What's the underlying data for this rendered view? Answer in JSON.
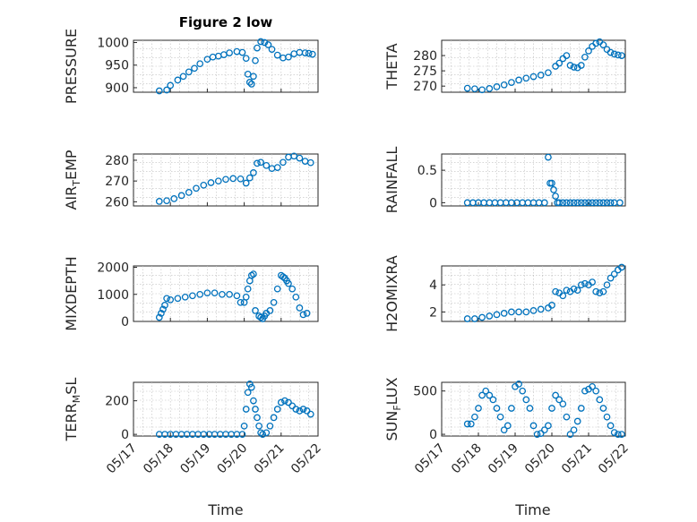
{
  "figure": {
    "title": "Figure 2 low",
    "marker_color": "#0072bd",
    "xlabel": "Time",
    "xticklabels": [
      "05/17",
      "05/18",
      "05/19",
      "05/20",
      "05/21",
      "05/22"
    ]
  },
  "chart_data": [
    {
      "type": "scatter",
      "ylabel": "PRESSURE",
      "ylabel_sub": "",
      "ylabel_tail": "",
      "ylim": [
        890,
        1005
      ],
      "yticks": [
        {
          "v": 900,
          "label": "900"
        },
        {
          "v": 950,
          "label": "950"
        },
        {
          "v": 1000,
          "label": "1000"
        }
      ],
      "x": [
        0.7,
        0.9,
        1.0,
        1.2,
        1.35,
        1.5,
        1.65,
        1.8,
        2.0,
        2.15,
        2.3,
        2.45,
        2.6,
        2.8,
        2.95,
        3.05,
        3.1,
        3.15,
        3.2,
        3.25,
        3.3,
        3.35,
        3.45,
        3.55,
        3.65,
        3.75,
        3.9,
        4.05,
        4.2,
        4.35,
        4.5,
        4.65,
        4.75,
        4.85
      ],
      "y": [
        893,
        895,
        905,
        917,
        925,
        935,
        943,
        953,
        963,
        968,
        970,
        973,
        977,
        980,
        978,
        965,
        930,
        912,
        908,
        925,
        960,
        988,
        1002,
        1000,
        995,
        985,
        972,
        966,
        968,
        975,
        978,
        977,
        976,
        974
      ]
    },
    {
      "type": "scatter",
      "ylabel": "THETA",
      "ylabel_sub": "",
      "ylabel_tail": "",
      "ylim": [
        268,
        285
      ],
      "yticks": [
        {
          "v": 270,
          "label": "270"
        },
        {
          "v": 275,
          "label": "275"
        },
        {
          "v": 280,
          "label": "280"
        }
      ],
      "x": [
        0.7,
        0.9,
        1.1,
        1.3,
        1.5,
        1.7,
        1.9,
        2.1,
        2.3,
        2.5,
        2.7,
        2.9,
        3.1,
        3.2,
        3.3,
        3.4,
        3.5,
        3.6,
        3.7,
        3.8,
        3.9,
        4.0,
        4.1,
        4.2,
        4.3,
        4.4,
        4.5,
        4.6,
        4.7,
        4.8,
        4.9
      ],
      "y": [
        269.3,
        269.1,
        268.8,
        269.2,
        269.8,
        270.4,
        271.2,
        272.0,
        272.6,
        273.1,
        273.6,
        274.4,
        276.5,
        277.5,
        279.0,
        280.0,
        276.8,
        276.2,
        276.0,
        276.8,
        279.5,
        281.5,
        283.0,
        284.0,
        284.5,
        283.5,
        282.0,
        281.0,
        280.5,
        280.2,
        280.0
      ]
    },
    {
      "type": "scatter",
      "ylabel": "AIR",
      "ylabel_sub": "T",
      "ylabel_tail": "EMP",
      "ylim": [
        258,
        283
      ],
      "yticks": [
        {
          "v": 260,
          "label": "260"
        },
        {
          "v": 270,
          "label": "270"
        },
        {
          "v": 280,
          "label": "280"
        }
      ],
      "x": [
        0.7,
        0.9,
        1.1,
        1.3,
        1.5,
        1.7,
        1.9,
        2.1,
        2.3,
        2.5,
        2.7,
        2.9,
        3.05,
        3.15,
        3.25,
        3.35,
        3.45,
        3.6,
        3.75,
        3.9,
        4.05,
        4.2,
        4.35,
        4.5,
        4.65,
        4.8
      ],
      "y": [
        260.2,
        260.5,
        261.5,
        263.0,
        264.5,
        266.5,
        268.0,
        269.2,
        270.0,
        270.8,
        271.2,
        271.0,
        269.0,
        271.5,
        274.0,
        278.5,
        279.0,
        277.5,
        276.0,
        276.5,
        279.0,
        281.5,
        282.0,
        281.0,
        279.5,
        278.8
      ]
    },
    {
      "type": "scatter",
      "ylabel": "RAINFALL",
      "ylabel_sub": "",
      "ylabel_tail": "",
      "ylim": [
        -0.05,
        0.75
      ],
      "yticks": [
        {
          "v": 0,
          "label": "0"
        },
        {
          "v": 0.5,
          "label": "0.5"
        }
      ],
      "x": [
        0.7,
        0.85,
        1.0,
        1.15,
        1.3,
        1.45,
        1.6,
        1.75,
        1.9,
        2.05,
        2.2,
        2.35,
        2.5,
        2.65,
        2.8,
        2.9,
        2.95,
        3.0,
        3.05,
        3.1,
        3.15,
        3.2,
        3.3,
        3.4,
        3.5,
        3.6,
        3.7,
        3.8,
        3.9,
        4.0,
        4.1,
        4.2,
        4.3,
        4.4,
        4.5,
        4.6,
        4.7,
        4.85
      ],
      "y": [
        0,
        0,
        0,
        0,
        0,
        0,
        0,
        0,
        0,
        0,
        0,
        0,
        0,
        0,
        0,
        0.7,
        0.3,
        0.3,
        0.2,
        0.1,
        0,
        0,
        0,
        0,
        0,
        0,
        0,
        0,
        0,
        0,
        0,
        0,
        0,
        0,
        0,
        0,
        0,
        0
      ]
    },
    {
      "type": "scatter",
      "ylabel": "MIXDEPTH",
      "ylabel_sub": "",
      "ylabel_tail": "",
      "ylim": [
        0,
        2050
      ],
      "yticks": [
        {
          "v": 0,
          "label": "0"
        },
        {
          "v": 1000,
          "label": "1000"
        },
        {
          "v": 2000,
          "label": "2000"
        }
      ],
      "x": [
        0.7,
        0.75,
        0.8,
        0.85,
        0.9,
        1.0,
        1.2,
        1.4,
        1.6,
        1.8,
        2.0,
        2.2,
        2.4,
        2.6,
        2.8,
        2.9,
        3.0,
        3.05,
        3.1,
        3.15,
        3.2,
        3.25,
        3.3,
        3.4,
        3.45,
        3.5,
        3.55,
        3.6,
        3.7,
        3.8,
        3.9,
        4.0,
        4.05,
        4.1,
        4.15,
        4.2,
        4.3,
        4.4,
        4.5,
        4.6,
        4.7
      ],
      "y": [
        150,
        300,
        450,
        600,
        850,
        800,
        850,
        900,
        950,
        1000,
        1050,
        1050,
        1000,
        1000,
        950,
        700,
        700,
        900,
        1200,
        1500,
        1700,
        1750,
        400,
        200,
        150,
        100,
        200,
        300,
        400,
        700,
        1200,
        1700,
        1650,
        1600,
        1500,
        1400,
        1200,
        900,
        500,
        250,
        300
      ]
    },
    {
      "type": "scatter",
      "ylabel": "H2OMIXRA",
      "ylabel_sub": "",
      "ylabel_tail": "",
      "ylim": [
        1.3,
        5.4
      ],
      "yticks": [
        {
          "v": 2,
          "label": "2"
        },
        {
          "v": 4,
          "label": "4"
        }
      ],
      "x": [
        0.7,
        0.9,
        1.1,
        1.3,
        1.5,
        1.7,
        1.9,
        2.1,
        2.3,
        2.5,
        2.7,
        2.9,
        3.0,
        3.1,
        3.2,
        3.3,
        3.4,
        3.5,
        3.6,
        3.7,
        3.8,
        3.9,
        4.0,
        4.1,
        4.2,
        4.3,
        4.4,
        4.5,
        4.6,
        4.7,
        4.8,
        4.9
      ],
      "y": [
        1.5,
        1.5,
        1.6,
        1.7,
        1.8,
        1.9,
        2.0,
        2.0,
        2.0,
        2.1,
        2.2,
        2.3,
        2.5,
        3.5,
        3.4,
        3.2,
        3.6,
        3.5,
        3.7,
        3.6,
        4.0,
        4.1,
        4.0,
        4.2,
        3.5,
        3.4,
        3.5,
        4.0,
        4.5,
        4.8,
        5.1,
        5.3
      ]
    },
    {
      "type": "scatter",
      "ylabel": "TERR",
      "ylabel_sub": "M",
      "ylabel_tail": "SL",
      "ylim": [
        -10,
        310
      ],
      "yticks": [
        {
          "v": 0,
          "label": "0"
        },
        {
          "v": 200,
          "label": "200"
        }
      ],
      "x": [
        0.7,
        0.85,
        1.0,
        1.15,
        1.3,
        1.45,
        1.6,
        1.75,
        1.9,
        2.05,
        2.2,
        2.35,
        2.5,
        2.65,
        2.8,
        2.95,
        3.0,
        3.05,
        3.1,
        3.15,
        3.2,
        3.25,
        3.3,
        3.35,
        3.4,
        3.45,
        3.5,
        3.6,
        3.7,
        3.8,
        3.9,
        4.0,
        4.1,
        4.2,
        4.3,
        4.4,
        4.5,
        4.6,
        4.7,
        4.8
      ],
      "y": [
        0,
        0,
        0,
        0,
        0,
        0,
        0,
        0,
        0,
        0,
        0,
        0,
        0,
        0,
        0,
        0,
        50,
        150,
        250,
        300,
        280,
        200,
        150,
        100,
        50,
        10,
        0,
        10,
        50,
        100,
        150,
        190,
        200,
        190,
        170,
        150,
        140,
        150,
        140,
        120
      ]
    },
    {
      "type": "scatter",
      "ylabel": "SUN",
      "ylabel_sub": "F",
      "ylabel_tail": "LUX",
      "ylim": [
        -20,
        600
      ],
      "yticks": [
        {
          "v": 0,
          "label": "0"
        },
        {
          "v": 500,
          "label": "500"
        }
      ],
      "x": [
        0.7,
        0.8,
        0.9,
        1.0,
        1.1,
        1.2,
        1.3,
        1.4,
        1.5,
        1.6,
        1.7,
        1.8,
        1.9,
        2.0,
        2.1,
        2.2,
        2.3,
        2.4,
        2.5,
        2.6,
        2.7,
        2.8,
        2.9,
        3.0,
        3.1,
        3.2,
        3.3,
        3.4,
        3.5,
        3.6,
        3.7,
        3.8,
        3.9,
        4.0,
        4.1,
        4.2,
        4.3,
        4.4,
        4.5,
        4.6,
        4.7,
        4.8,
        4.9
      ],
      "y": [
        120,
        120,
        200,
        300,
        450,
        500,
        450,
        400,
        300,
        200,
        50,
        100,
        300,
        550,
        580,
        500,
        400,
        300,
        100,
        0,
        10,
        50,
        100,
        300,
        450,
        400,
        350,
        200,
        0,
        50,
        150,
        300,
        500,
        520,
        550,
        500,
        400,
        300,
        200,
        100,
        20,
        0,
        0
      ]
    }
  ]
}
